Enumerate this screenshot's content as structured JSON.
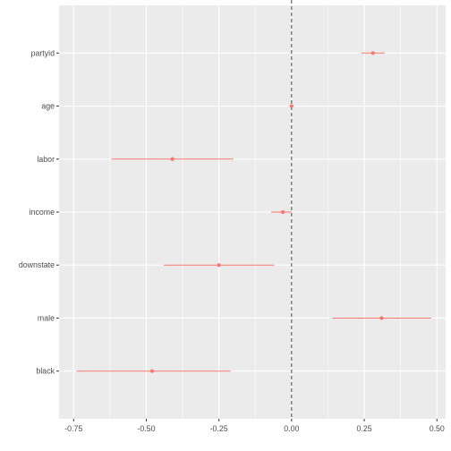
{
  "chart_data": {
    "type": "scatter",
    "title": "",
    "xlabel": "",
    "ylabel": "",
    "xlim": [
      -0.8,
      0.53
    ],
    "x_ticks": [
      -0.75,
      -0.5,
      -0.25,
      0.0,
      0.25,
      0.5
    ],
    "x_tick_labels": [
      "-0.75",
      "-0.50",
      "-0.25",
      "0.00",
      "0.25",
      "0.50"
    ],
    "categories": [
      "partyid",
      "age",
      "labor",
      "income",
      "downstate",
      "male",
      "black"
    ],
    "estimates": [
      0.28,
      0.0,
      -0.41,
      -0.03,
      -0.25,
      0.31,
      -0.48
    ],
    "lower": [
      0.24,
      0.0,
      -0.62,
      -0.07,
      -0.44,
      0.14,
      -0.74
    ],
    "upper": [
      0.32,
      0.0,
      -0.2,
      0.0,
      -0.06,
      0.48,
      -0.21
    ],
    "reference_line_x": 0,
    "grid": true,
    "legend": "none",
    "colors": {
      "panel": "#EBEBEB",
      "grid_major": "#FFFFFF",
      "point": "#F8766D",
      "reference_line": "#333333"
    }
  }
}
